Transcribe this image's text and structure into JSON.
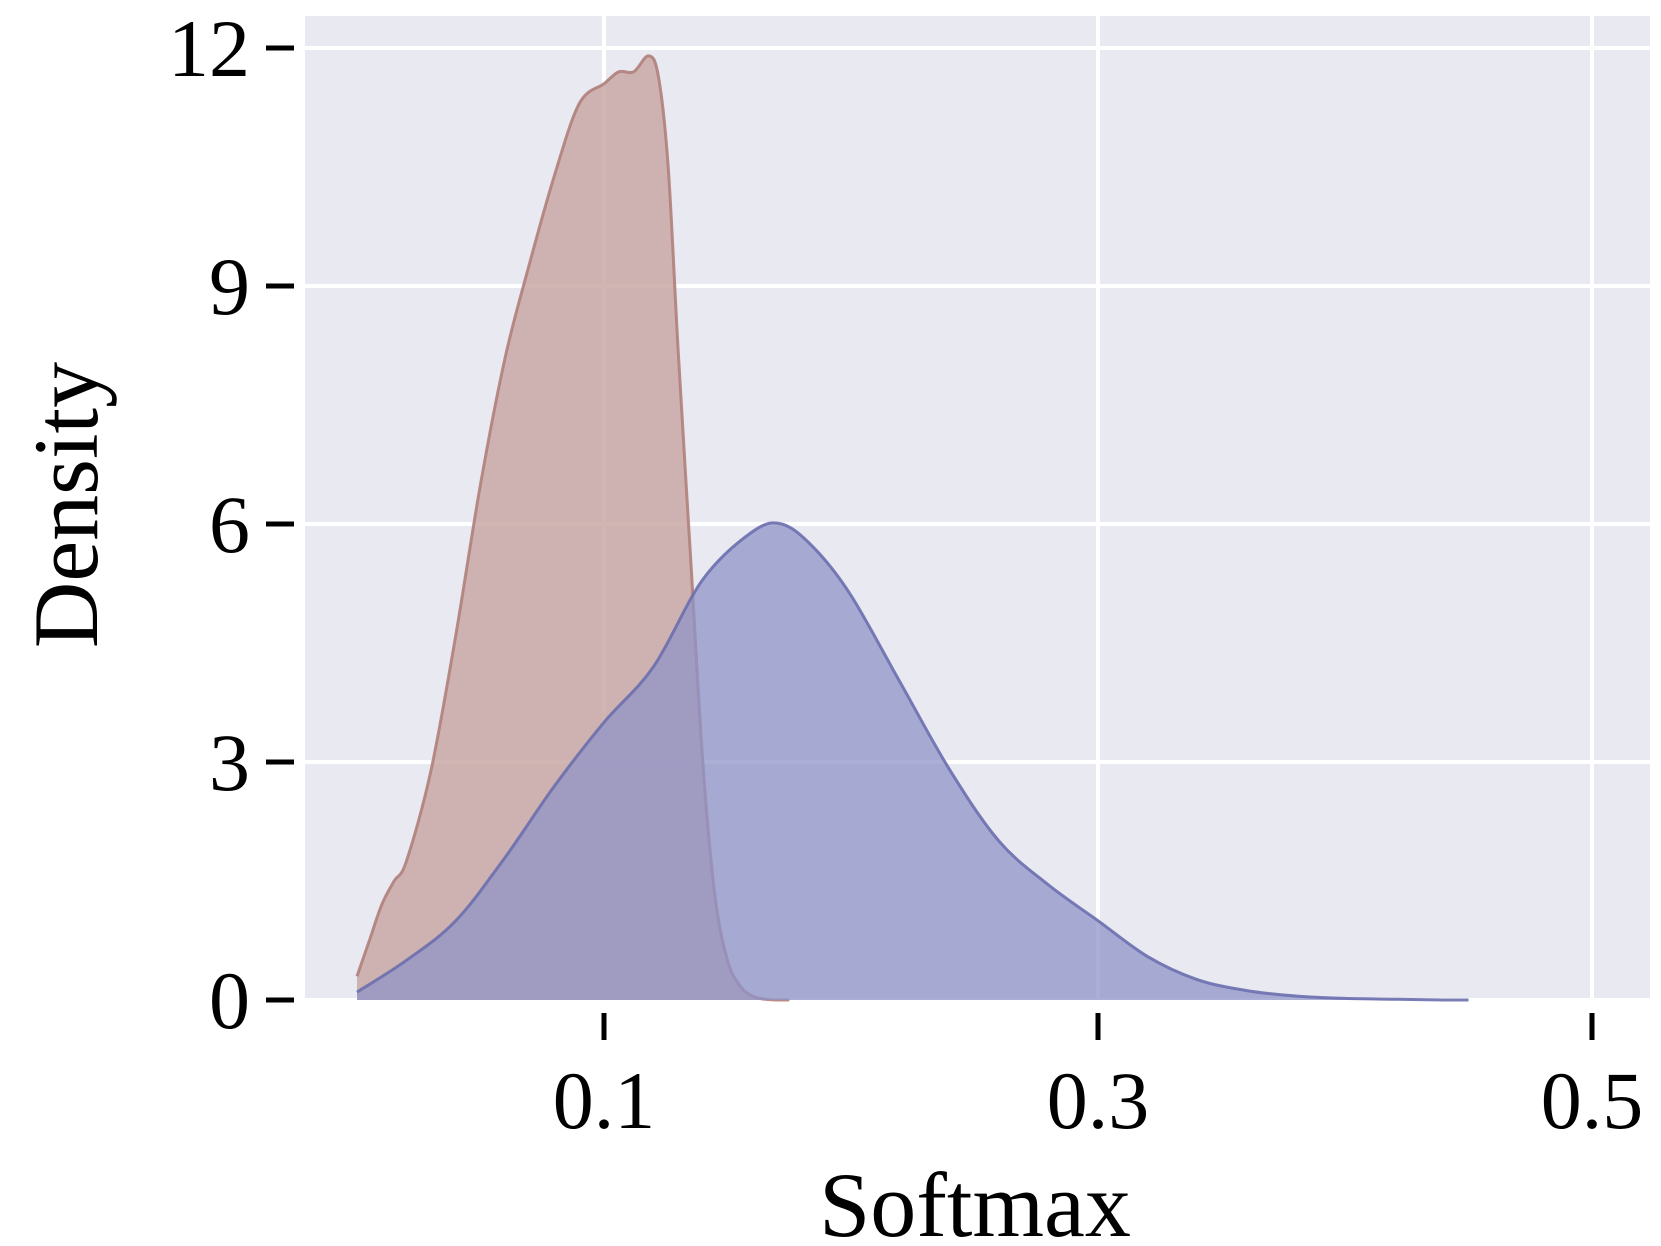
{
  "chart_data": {
    "type": "area",
    "title": "",
    "xlabel": "Softmax",
    "ylabel": "Density",
    "xlim": [
      -0.022,
      0.524
    ],
    "ylim": [
      0,
      12.6
    ],
    "xticks": [
      0.1,
      0.3,
      0.5
    ],
    "xtick_labels": [
      "0.1",
      "0.3",
      "0.5"
    ],
    "yticks": [
      0,
      3,
      6,
      9,
      12
    ],
    "ytick_labels": [
      "0",
      "3",
      "6",
      "9",
      "12"
    ],
    "grid": true,
    "legend": "none",
    "background_color": "#e9e9f2",
    "grid_color": "#ffffff",
    "series": [
      {
        "fill_color": "#c9a8a6",
        "line_color": "#b07f7b",
        "fill_opacity": 0.85,
        "x": [
          -0.0,
          0.005,
          0.01,
          0.015,
          0.02,
          0.03,
          0.04,
          0.05,
          0.06,
          0.07,
          0.08,
          0.09,
          0.1,
          0.106,
          0.112,
          0.118,
          0.122,
          0.126,
          0.13,
          0.135,
          0.14,
          0.145,
          0.15,
          0.155,
          0.16,
          0.165,
          0.17,
          0.175
        ],
        "y": [
          0.3,
          0.75,
          1.2,
          1.5,
          1.75,
          2.9,
          4.6,
          6.5,
          8.1,
          9.3,
          10.4,
          11.3,
          11.55,
          11.7,
          11.7,
          11.9,
          11.65,
          10.5,
          8.2,
          5.6,
          3.0,
          1.3,
          0.5,
          0.18,
          0.05,
          0.01,
          0.0,
          0.0
        ]
      },
      {
        "fill_color": "#8f93c7",
        "line_color": "#6b6fae",
        "fill_opacity": 0.75,
        "x": [
          0.0,
          0.02,
          0.04,
          0.06,
          0.08,
          0.1,
          0.12,
          0.14,
          0.16,
          0.172,
          0.185,
          0.2,
          0.22,
          0.24,
          0.26,
          0.28,
          0.3,
          0.32,
          0.34,
          0.36,
          0.38,
          0.4,
          0.42,
          0.44,
          0.45
        ],
        "y": [
          0.1,
          0.5,
          1.0,
          1.8,
          2.7,
          3.5,
          4.2,
          5.3,
          5.9,
          6.0,
          5.7,
          5.1,
          4.0,
          2.9,
          2.0,
          1.45,
          1.0,
          0.55,
          0.26,
          0.12,
          0.05,
          0.02,
          0.01,
          0.0,
          0.0
        ]
      }
    ]
  }
}
